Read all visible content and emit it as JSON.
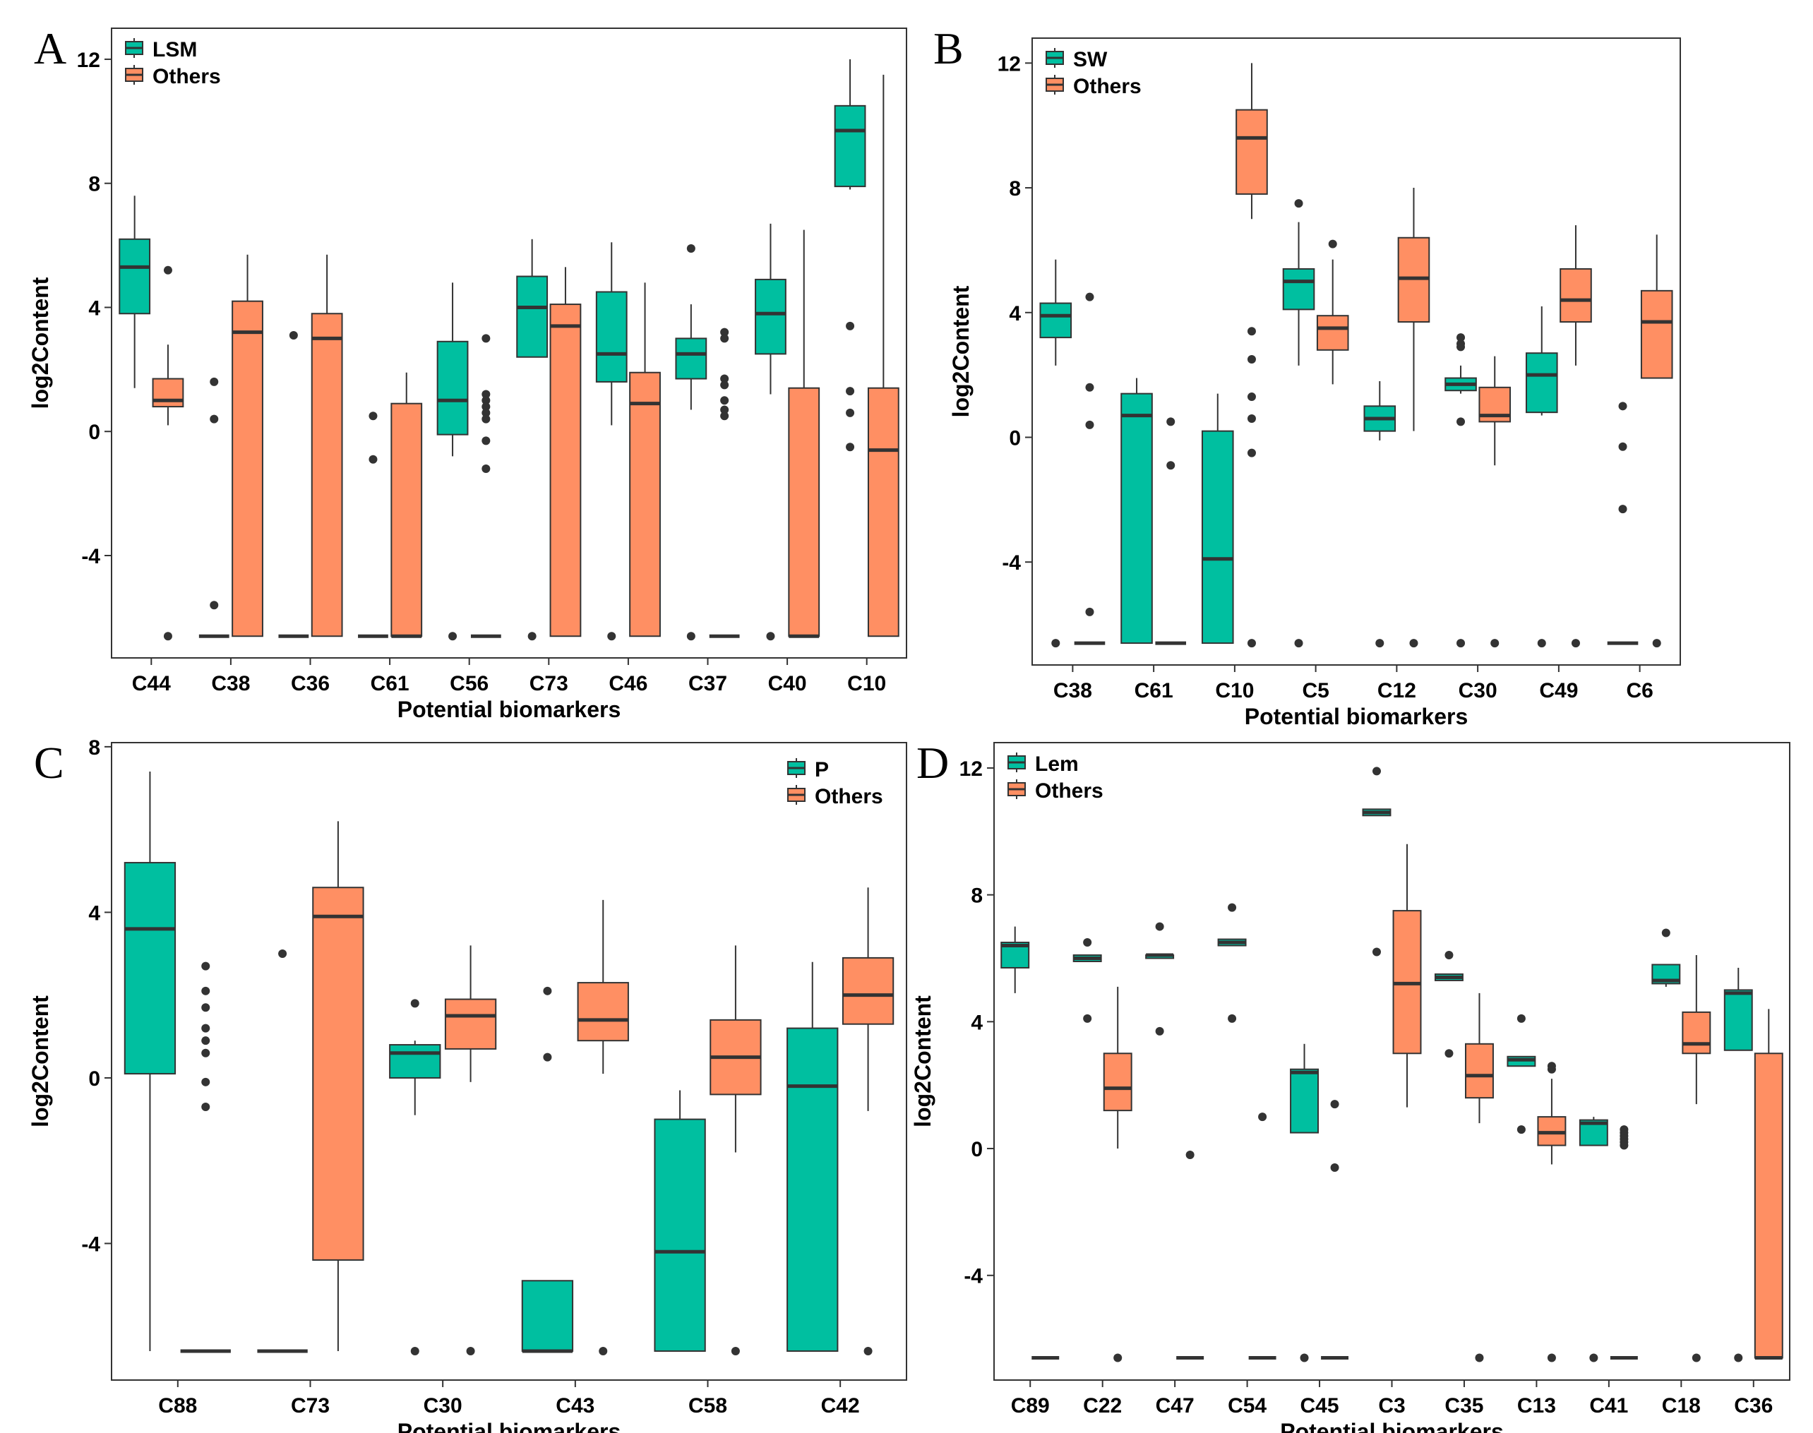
{
  "colors": {
    "group": "#00BFA0",
    "others": "#FF8F63",
    "line": "#333333",
    "frame": "#333333"
  },
  "axis_label_x": "Potential biomarkers",
  "axis_label_y": "log2Content",
  "chart_data": [
    {
      "panel": "A",
      "type": "boxplot",
      "legend_position": "top-left",
      "title": "",
      "xlabel": "Potential biomarkers",
      "ylabel": "log2Content",
      "ylim": [
        -7.3,
        13.0
      ],
      "yticks": [
        -4,
        0,
        4,
        8,
        12
      ],
      "legend": [
        "LSM",
        "Others"
      ],
      "categories": [
        "C44",
        "C38",
        "C36",
        "C61",
        "C56",
        "C73",
        "C46",
        "C37",
        "C40",
        "C10"
      ],
      "series": [
        {
          "name": "LSM",
          "boxes": [
            {
              "lo": 1.4,
              "q1": 3.8,
              "med": 5.3,
              "q3": 6.2,
              "hi": 7.6,
              "out": []
            },
            {
              "lo": -6.6,
              "q1": -6.6,
              "med": -6.6,
              "q3": -6.6,
              "hi": -6.6,
              "out": [
                1.6,
                0.4,
                -5.6
              ]
            },
            {
              "lo": -6.6,
              "q1": -6.6,
              "med": -6.6,
              "q3": -6.6,
              "hi": -6.6,
              "out": [
                3.1
              ]
            },
            {
              "lo": -6.6,
              "q1": -6.6,
              "med": -6.6,
              "q3": -6.6,
              "hi": -6.6,
              "out": [
                0.5,
                -0.9
              ]
            },
            {
              "lo": -0.8,
              "q1": -0.1,
              "med": 1.0,
              "q3": 2.9,
              "hi": 4.8,
              "out": [
                -6.6
              ]
            },
            {
              "lo": 2.4,
              "q1": 2.4,
              "med": 4.0,
              "q3": 5.0,
              "hi": 6.2,
              "out": [
                -6.6
              ]
            },
            {
              "lo": 0.2,
              "q1": 1.6,
              "med": 2.5,
              "q3": 4.5,
              "hi": 6.1,
              "out": [
                -6.6
              ]
            },
            {
              "lo": 0.7,
              "q1": 1.7,
              "med": 2.5,
              "q3": 3.0,
              "hi": 4.1,
              "out": [
                5.9,
                -6.6
              ]
            },
            {
              "lo": 1.2,
              "q1": 2.5,
              "med": 3.8,
              "q3": 4.9,
              "hi": 6.7,
              "out": [
                -6.6
              ]
            },
            {
              "lo": 7.8,
              "q1": 7.9,
              "med": 9.7,
              "q3": 10.5,
              "hi": 12.0,
              "out": [
                3.4,
                1.3,
                0.6,
                -0.5
              ]
            }
          ]
        },
        {
          "name": "Others",
          "boxes": [
            {
              "lo": 0.2,
              "q1": 0.8,
              "med": 1.0,
              "q3": 1.7,
              "hi": 2.8,
              "out": [
                5.2,
                -6.6
              ]
            },
            {
              "lo": -6.6,
              "q1": -6.6,
              "med": 3.2,
              "q3": 4.2,
              "hi": 5.7,
              "out": []
            },
            {
              "lo": -6.6,
              "q1": -6.6,
              "med": 3.0,
              "q3": 3.8,
              "hi": 5.7,
              "out": []
            },
            {
              "lo": -6.6,
              "q1": -6.6,
              "med": -6.6,
              "q3": 0.9,
              "hi": 1.9,
              "out": []
            },
            {
              "lo": -6.6,
              "q1": -6.6,
              "med": -6.6,
              "q3": -6.6,
              "hi": -6.6,
              "out": [
                3.0,
                1.2,
                1.0,
                0.8,
                0.6,
                0.4,
                -0.3,
                -1.2
              ]
            },
            {
              "lo": -6.6,
              "q1": -6.6,
              "med": 3.4,
              "q3": 4.1,
              "hi": 5.3,
              "out": []
            },
            {
              "lo": -6.6,
              "q1": -6.6,
              "med": 0.9,
              "q3": 1.9,
              "hi": 4.8,
              "out": []
            },
            {
              "lo": -6.6,
              "q1": -6.6,
              "med": -6.6,
              "q3": -6.6,
              "hi": -6.6,
              "out": [
                3.2,
                3.0,
                1.7,
                1.5,
                1.0,
                0.7,
                0.5
              ]
            },
            {
              "lo": -6.6,
              "q1": -6.6,
              "med": -6.6,
              "q3": 1.4,
              "hi": 6.5,
              "out": []
            },
            {
              "lo": -6.6,
              "q1": -6.6,
              "med": -0.6,
              "q3": 1.4,
              "hi": 11.5,
              "out": []
            }
          ]
        }
      ]
    },
    {
      "panel": "B",
      "type": "boxplot",
      "legend_position": "top-left",
      "title": "",
      "xlabel": "Potential biomarkers",
      "ylabel": "log2Content",
      "ylim": [
        -7.3,
        12.8
      ],
      "yticks": [
        -4,
        0,
        4,
        8,
        12
      ],
      "legend": [
        "SW",
        "Others"
      ],
      "categories": [
        "C38",
        "C61",
        "C10",
        "C5",
        "C12",
        "C30",
        "C49",
        "C6"
      ],
      "series": [
        {
          "name": "SW",
          "boxes": [
            {
              "lo": 2.3,
              "q1": 3.2,
              "med": 3.9,
              "q3": 4.3,
              "hi": 5.7,
              "out": [
                -6.6
              ]
            },
            {
              "lo": -6.6,
              "q1": -6.6,
              "med": 0.7,
              "q3": 1.4,
              "hi": 1.9,
              "out": []
            },
            {
              "lo": -6.6,
              "q1": -6.6,
              "med": -3.9,
              "q3": 0.2,
              "hi": 1.4,
              "out": []
            },
            {
              "lo": 2.3,
              "q1": 4.1,
              "med": 5.0,
              "q3": 5.4,
              "hi": 6.9,
              "out": [
                7.5,
                -6.6
              ]
            },
            {
              "lo": -0.1,
              "q1": 0.2,
              "med": 0.6,
              "q3": 1.0,
              "hi": 1.8,
              "out": [
                -6.6
              ]
            },
            {
              "lo": 1.4,
              "q1": 1.5,
              "med": 1.7,
              "q3": 1.9,
              "hi": 2.3,
              "out": [
                3.2,
                3.0,
                2.9,
                0.5,
                -6.6
              ]
            },
            {
              "lo": 0.7,
              "q1": 0.8,
              "med": 2.0,
              "q3": 2.7,
              "hi": 4.2,
              "out": [
                -6.6
              ]
            },
            {
              "lo": -6.6,
              "q1": -6.6,
              "med": -6.6,
              "q3": -6.6,
              "hi": -6.6,
              "out": [
                1.0,
                -0.3,
                -2.3
              ]
            }
          ]
        },
        {
          "name": "Others",
          "boxes": [
            {
              "lo": -6.6,
              "q1": -6.6,
              "med": -6.6,
              "q3": -6.6,
              "hi": -6.6,
              "out": [
                4.5,
                1.6,
                0.4,
                -5.6
              ]
            },
            {
              "lo": -6.6,
              "q1": -6.6,
              "med": -6.6,
              "q3": -6.6,
              "hi": -6.6,
              "out": [
                0.5,
                -0.9
              ]
            },
            {
              "lo": 7.0,
              "q1": 7.8,
              "med": 9.6,
              "q3": 10.5,
              "hi": 12.0,
              "out": [
                3.4,
                2.5,
                1.3,
                0.6,
                -0.5,
                -6.6
              ]
            },
            {
              "lo": 1.7,
              "q1": 2.8,
              "med": 3.5,
              "q3": 3.9,
              "hi": 5.7,
              "out": [
                6.2
              ]
            },
            {
              "lo": 0.2,
              "q1": 3.7,
              "med": 5.1,
              "q3": 6.4,
              "hi": 8.0,
              "out": [
                -6.6
              ]
            },
            {
              "lo": -0.9,
              "q1": 0.5,
              "med": 0.7,
              "q3": 1.6,
              "hi": 2.6,
              "out": [
                -6.6
              ]
            },
            {
              "lo": 2.3,
              "q1": 3.7,
              "med": 4.4,
              "q3": 5.4,
              "hi": 6.8,
              "out": [
                -6.6
              ]
            },
            {
              "lo": 1.9,
              "q1": 1.9,
              "med": 3.7,
              "q3": 4.7,
              "hi": 6.5,
              "out": [
                -6.6
              ]
            }
          ]
        }
      ]
    },
    {
      "panel": "C",
      "type": "boxplot",
      "legend_position": "top-right",
      "title": "",
      "xlabel": "Potential biomarkers",
      "ylabel": "log2Content",
      "ylim": [
        -7.3,
        8.1
      ],
      "yticks": [
        -4,
        0,
        4,
        8
      ],
      "legend": [
        "P",
        "Others"
      ],
      "categories": [
        "C88",
        "C73",
        "C30",
        "C43",
        "C58",
        "C42"
      ],
      "series": [
        {
          "name": "P",
          "boxes": [
            {
              "lo": -6.6,
              "q1": 0.1,
              "med": 3.6,
              "q3": 5.2,
              "hi": 7.4,
              "out": []
            },
            {
              "lo": -6.6,
              "q1": -6.6,
              "med": -6.6,
              "q3": -6.6,
              "hi": -6.6,
              "out": [
                3.0
              ]
            },
            {
              "lo": -0.9,
              "q1": 0.0,
              "med": 0.6,
              "q3": 0.8,
              "hi": 0.9,
              "out": [
                1.8,
                -6.6
              ]
            },
            {
              "lo": -6.6,
              "q1": -6.6,
              "med": -6.6,
              "q3": -4.9,
              "hi": -4.9,
              "out": [
                2.1,
                0.5
              ]
            },
            {
              "lo": -6.6,
              "q1": -6.6,
              "med": -4.2,
              "q3": -1.0,
              "hi": -0.3,
              "out": []
            },
            {
              "lo": -6.6,
              "q1": -6.6,
              "med": -0.2,
              "q3": 1.2,
              "hi": 2.8,
              "out": []
            }
          ]
        },
        {
          "name": "Others",
          "boxes": [
            {
              "lo": -6.6,
              "q1": -6.6,
              "med": -6.6,
              "q3": -6.6,
              "hi": -6.6,
              "out": [
                2.7,
                2.1,
                1.7,
                1.2,
                0.9,
                0.6,
                -0.1,
                -0.7
              ]
            },
            {
              "lo": -6.6,
              "q1": -4.4,
              "med": 3.9,
              "q3": 4.6,
              "hi": 6.2,
              "out": []
            },
            {
              "lo": -0.1,
              "q1": 0.7,
              "med": 1.5,
              "q3": 1.9,
              "hi": 3.2,
              "out": [
                -6.6
              ]
            },
            {
              "lo": 0.1,
              "q1": 0.9,
              "med": 1.4,
              "q3": 2.3,
              "hi": 4.3,
              "out": [
                -6.6
              ]
            },
            {
              "lo": -1.8,
              "q1": -0.4,
              "med": 0.5,
              "q3": 1.4,
              "hi": 3.2,
              "out": [
                -6.6
              ]
            },
            {
              "lo": -0.8,
              "q1": 1.3,
              "med": 2.0,
              "q3": 2.9,
              "hi": 4.6,
              "out": [
                -6.6
              ]
            }
          ]
        }
      ]
    },
    {
      "panel": "D",
      "type": "boxplot",
      "legend_position": "top-left",
      "title": "",
      "xlabel": "Potential biomarkers",
      "ylabel": "log2Content",
      "ylim": [
        -7.3,
        12.8
      ],
      "yticks": [
        -4,
        0,
        4,
        8,
        12
      ],
      "legend": [
        "Lem",
        "Others"
      ],
      "categories": [
        "C89",
        "C22",
        "C47",
        "C54",
        "C45",
        "C3",
        "C35",
        "C13",
        "C41",
        "C18",
        "C36"
      ],
      "series": [
        {
          "name": "Lem",
          "boxes": [
            {
              "lo": 4.9,
              "q1": 5.7,
              "med": 6.4,
              "q3": 6.5,
              "hi": 7.0,
              "out": []
            },
            {
              "lo": 5.9,
              "q1": 5.9,
              "med": 6.0,
              "q3": 6.1,
              "hi": 6.1,
              "out": [
                6.5,
                4.1
              ]
            },
            {
              "lo": 6.0,
              "q1": 6.0,
              "med": 6.1,
              "q3": 6.1,
              "hi": 6.1,
              "out": [
                7.0,
                3.7
              ]
            },
            {
              "lo": 6.4,
              "q1": 6.4,
              "med": 6.5,
              "q3": 6.6,
              "hi": 6.6,
              "out": [
                7.6,
                4.1
              ]
            },
            {
              "lo": 0.5,
              "q1": 0.5,
              "med": 2.4,
              "q3": 2.5,
              "hi": 3.3,
              "out": [
                -6.6
              ]
            },
            {
              "lo": 10.5,
              "q1": 10.5,
              "med": 10.6,
              "q3": 10.7,
              "hi": 10.7,
              "out": [
                11.9,
                6.2
              ]
            },
            {
              "lo": 5.3,
              "q1": 5.3,
              "med": 5.4,
              "q3": 5.5,
              "hi": 5.5,
              "out": [
                6.1,
                3.0
              ]
            },
            {
              "lo": 2.6,
              "q1": 2.6,
              "med": 2.8,
              "q3": 2.9,
              "hi": 2.9,
              "out": [
                4.1,
                0.6
              ]
            },
            {
              "lo": 0.1,
              "q1": 0.1,
              "med": 0.8,
              "q3": 0.9,
              "hi": 1.0,
              "out": [
                -6.6
              ]
            },
            {
              "lo": 5.1,
              "q1": 5.2,
              "med": 5.3,
              "q3": 5.8,
              "hi": 5.8,
              "out": [
                6.8
              ]
            },
            {
              "lo": 3.1,
              "q1": 3.1,
              "med": 4.9,
              "q3": 5.0,
              "hi": 5.7,
              "out": [
                -6.6
              ]
            }
          ]
        },
        {
          "name": "Others",
          "boxes": [
            {
              "lo": -6.6,
              "q1": -6.6,
              "med": -6.6,
              "q3": -6.6,
              "hi": -6.6,
              "out": []
            },
            {
              "lo": 0.0,
              "q1": 1.2,
              "med": 1.9,
              "q3": 3.0,
              "hi": 5.1,
              "out": [
                -6.6
              ]
            },
            {
              "lo": -6.6,
              "q1": -6.6,
              "med": -6.6,
              "q3": -6.6,
              "hi": -6.6,
              "out": [
                -0.2
              ]
            },
            {
              "lo": -6.6,
              "q1": -6.6,
              "med": -6.6,
              "q3": -6.6,
              "hi": -6.6,
              "out": [
                1.0
              ]
            },
            {
              "lo": -6.6,
              "q1": -6.6,
              "med": -6.6,
              "q3": -6.6,
              "hi": -6.6,
              "out": [
                1.4,
                -0.6
              ]
            },
            {
              "lo": 1.3,
              "q1": 3.0,
              "med": 5.2,
              "q3": 7.5,
              "hi": 9.6,
              "out": []
            },
            {
              "lo": 0.8,
              "q1": 1.6,
              "med": 2.3,
              "q3": 3.3,
              "hi": 4.9,
              "out": [
                -6.6
              ]
            },
            {
              "lo": -0.5,
              "q1": 0.1,
              "med": 0.5,
              "q3": 1.0,
              "hi": 2.2,
              "out": [
                2.6,
                2.5,
                -6.6
              ]
            },
            {
              "lo": -6.6,
              "q1": -6.6,
              "med": -6.6,
              "q3": -6.6,
              "hi": -6.6,
              "out": [
                0.6,
                0.5,
                0.4,
                0.3,
                0.2,
                0.1
              ]
            },
            {
              "lo": 1.4,
              "q1": 3.0,
              "med": 3.3,
              "q3": 4.3,
              "hi": 6.1,
              "out": [
                -6.6
              ]
            },
            {
              "lo": -6.6,
              "q1": -6.6,
              "med": -6.6,
              "q3": 3.0,
              "hi": 4.4,
              "out": []
            }
          ]
        }
      ]
    }
  ]
}
